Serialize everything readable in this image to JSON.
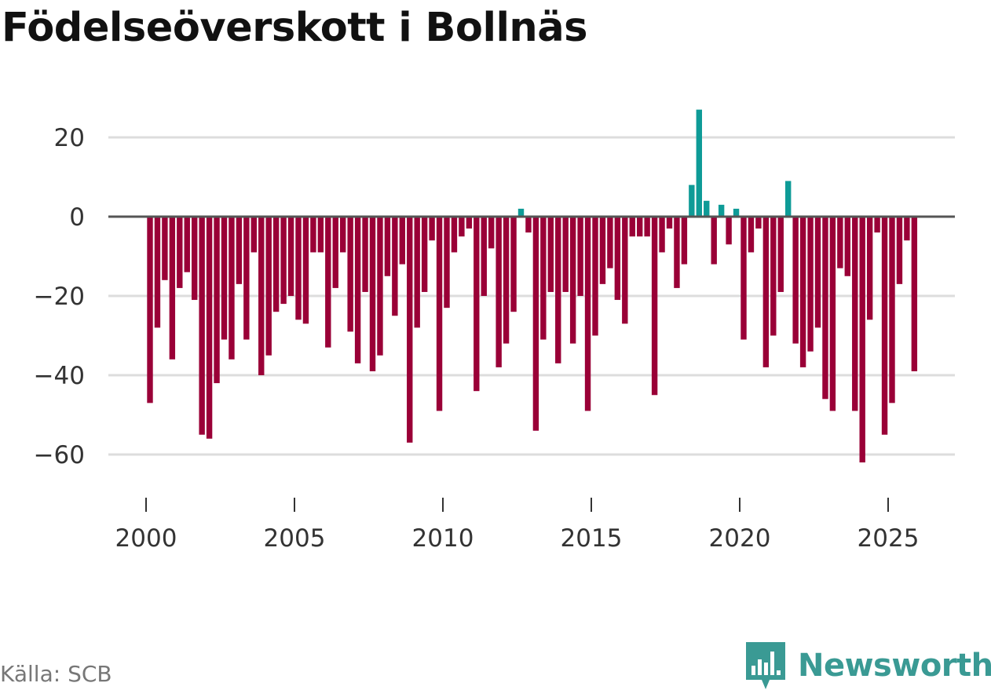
{
  "title": "Födelseöverskott i Bollnäs",
  "source": "Källa: SCB",
  "brand": {
    "name": "Newsworthy",
    "color": "#3a9a94",
    "icon": "bar-chart-speech-bubble-icon"
  },
  "colors": {
    "positive": "#0e9b97",
    "negative": "#9a0037",
    "grid": "#dddddd",
    "zero": "#555555"
  },
  "chart_data": {
    "type": "bar",
    "title": "Födelseöverskott i Bollnäs",
    "xlabel": "",
    "ylabel": "",
    "ylim": [
      -70,
      32
    ],
    "xlim": [
      1999.1,
      2027.5
    ],
    "yticks": [
      20,
      0,
      -20,
      -40,
      -60
    ],
    "ytick_labels": [
      "20",
      "0",
      "−20",
      "−40",
      "−60"
    ],
    "xticks": [
      2000,
      2005,
      2010,
      2015,
      2020,
      2025
    ],
    "xtick_labels": [
      "2000",
      "2005",
      "2010",
      "2015",
      "2020",
      "2025"
    ],
    "frequency": "quarterly",
    "start": 2000,
    "values": [
      -47,
      -28,
      -16,
      -36,
      -18,
      -14,
      -21,
      -55,
      -56,
      -42,
      -31,
      -36,
      -17,
      -31,
      -9,
      -40,
      -35,
      -24,
      -22,
      -20,
      -26,
      -27,
      -9,
      -9,
      -33,
      -18,
      -9,
      -29,
      -37,
      -19,
      -39,
      -35,
      -15,
      -25,
      -12,
      -57,
      -28,
      -19,
      -6,
      -49,
      -23,
      -9,
      -5,
      -3,
      -44,
      -20,
      -8,
      -38,
      -32,
      -24,
      2,
      -4,
      -54,
      -31,
      -19,
      -37,
      -19,
      -32,
      -20,
      -49,
      -30,
      -17,
      -13,
      -21,
      -27,
      -5,
      -5,
      -5,
      -45,
      -9,
      -3,
      -18,
      -12,
      8,
      27,
      4,
      -12,
      3,
      -7,
      2,
      -31,
      -9,
      -3,
      -38,
      -30,
      -19,
      9,
      -32,
      -38,
      -34,
      -28,
      -46,
      -49,
      -13,
      -15,
      -49,
      -62,
      -26,
      -4,
      -55,
      -47,
      -17,
      -6,
      -39
    ]
  }
}
